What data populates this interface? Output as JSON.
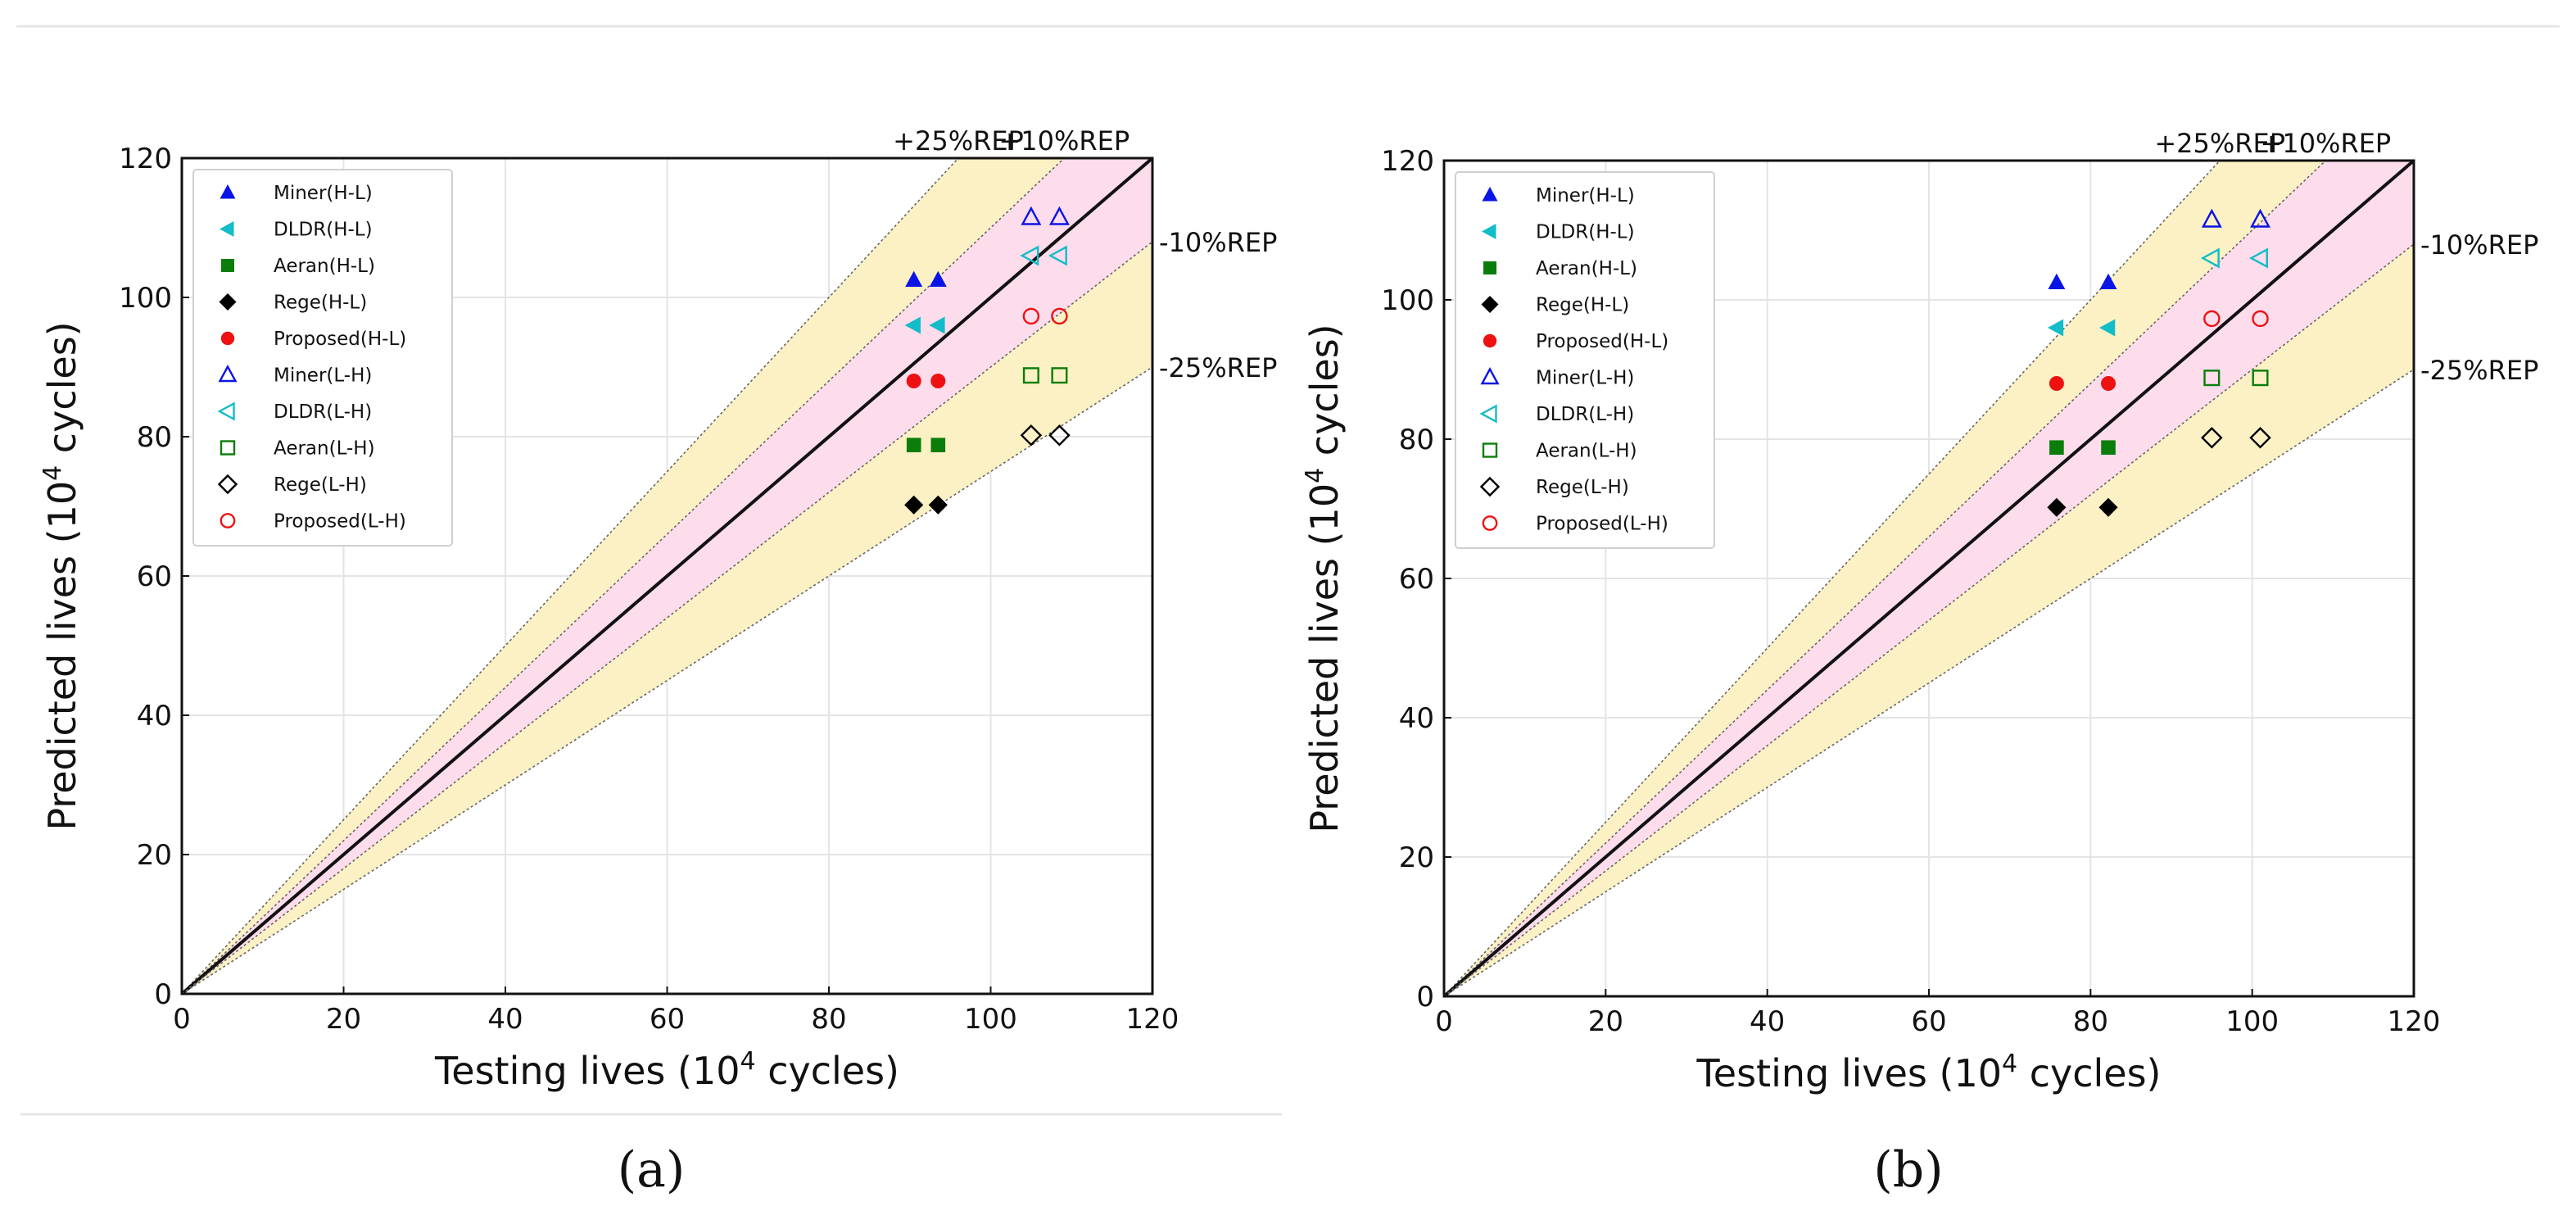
{
  "figure": {
    "panel_labels": [
      "(a)",
      "(b)"
    ]
  },
  "chart_data": [
    {
      "type": "scatter",
      "panel": "(a)",
      "xlabel": "Testing lives (10^4 cycles)",
      "ylabel": "Predicted lives (10^4 cycles)",
      "xlim": [
        0,
        120
      ],
      "ylim": [
        0,
        120
      ],
      "xticks": [
        0,
        20,
        40,
        60,
        80,
        100,
        120
      ],
      "yticks": [
        0,
        20,
        40,
        60,
        80,
        100,
        120
      ],
      "grid": true,
      "legend_position": "upper-left",
      "reference_lines": [
        {
          "label": "+25%REP",
          "slope": 1.25
        },
        {
          "label": "+10%REP",
          "slope": 1.1
        },
        {
          "label": "",
          "slope": 1.0
        },
        {
          "label": "-10%REP",
          "slope": 0.9
        },
        {
          "label": "-25%REP",
          "slope": 0.75
        }
      ],
      "band_colors": {
        "inner": "#fddcec",
        "outer": "#fbf1c4"
      },
      "series": [
        {
          "name": "Miner(H-L)",
          "marker": "triangle-up",
          "color": "#0a14e6",
          "filled": true,
          "x": [
            90.5,
            93.5
          ],
          "y": [
            102.5,
            102.5
          ]
        },
        {
          "name": "DLDR(H-L)",
          "marker": "triangle-left",
          "color": "#12bcc8",
          "filled": true,
          "x": [
            90.5,
            93.5
          ],
          "y": [
            96,
            96
          ]
        },
        {
          "name": "Aeran(H-L)",
          "marker": "square",
          "color": "#0a7d0a",
          "filled": true,
          "x": [
            90.5,
            93.5
          ],
          "y": [
            78.8,
            78.8
          ]
        },
        {
          "name": "Rege(H-L)",
          "marker": "diamond",
          "color": "#000000",
          "filled": true,
          "x": [
            90.5,
            93.5
          ],
          "y": [
            70.2,
            70.2
          ]
        },
        {
          "name": "Proposed(H-L)",
          "marker": "circle",
          "color": "#ee1111",
          "filled": true,
          "x": [
            90.5,
            93.5
          ],
          "y": [
            88,
            88
          ]
        },
        {
          "name": "Miner(L-H)",
          "marker": "triangle-up",
          "color": "#0a14e6",
          "filled": false,
          "x": [
            105,
            108.5
          ],
          "y": [
            111.5,
            111.5
          ]
        },
        {
          "name": "DLDR(L-H)",
          "marker": "triangle-left",
          "color": "#12bcc8",
          "filled": false,
          "x": [
            105,
            108.5
          ],
          "y": [
            106,
            106
          ]
        },
        {
          "name": "Aeran(L-H)",
          "marker": "square",
          "color": "#0a7d0a",
          "filled": false,
          "x": [
            105,
            108.5
          ],
          "y": [
            88.8,
            88.8
          ]
        },
        {
          "name": "Rege(L-H)",
          "marker": "diamond",
          "color": "#000000",
          "filled": false,
          "x": [
            105,
            108.5
          ],
          "y": [
            80.2,
            80.2
          ]
        },
        {
          "name": "Proposed(L-H)",
          "marker": "circle",
          "color": "#ee1111",
          "filled": false,
          "x": [
            105,
            108.5
          ],
          "y": [
            97.3,
            97.3
          ]
        }
      ]
    },
    {
      "type": "scatter",
      "panel": "(b)",
      "xlabel": "Testing lives (10^4 cycles)",
      "ylabel": "Predicted lives (10^4 cycles)",
      "xlim": [
        0,
        120
      ],
      "ylim": [
        0,
        120
      ],
      "xticks": [
        0,
        20,
        40,
        60,
        80,
        100,
        120
      ],
      "yticks": [
        0,
        20,
        40,
        60,
        80,
        100,
        120
      ],
      "grid": true,
      "legend_position": "upper-left",
      "reference_lines": [
        {
          "label": "+25%REP",
          "slope": 1.25
        },
        {
          "label": "+10%REP",
          "slope": 1.1
        },
        {
          "label": "",
          "slope": 1.0
        },
        {
          "label": "-10%REP",
          "slope": 0.9
        },
        {
          "label": "-25%REP",
          "slope": 0.75
        }
      ],
      "band_colors": {
        "inner": "#fddcec",
        "outer": "#fbf1c4"
      },
      "series": [
        {
          "name": "Miner(H-L)",
          "marker": "triangle-up",
          "color": "#0a14e6",
          "filled": true,
          "x": [
            75.8,
            82.2
          ],
          "y": [
            102.5,
            102.5
          ]
        },
        {
          "name": "DLDR(H-L)",
          "marker": "triangle-left",
          "color": "#12bcc8",
          "filled": true,
          "x": [
            75.8,
            82.2
          ],
          "y": [
            96,
            96
          ]
        },
        {
          "name": "Aeran(H-L)",
          "marker": "square",
          "color": "#0a7d0a",
          "filled": true,
          "x": [
            75.8,
            82.2
          ],
          "y": [
            78.8,
            78.8
          ]
        },
        {
          "name": "Rege(H-L)",
          "marker": "diamond",
          "color": "#000000",
          "filled": true,
          "x": [
            75.8,
            82.2
          ],
          "y": [
            70.2,
            70.2
          ]
        },
        {
          "name": "Proposed(H-L)",
          "marker": "circle",
          "color": "#ee1111",
          "filled": true,
          "x": [
            75.8,
            82.2
          ],
          "y": [
            88,
            88
          ]
        },
        {
          "name": "Miner(L-H)",
          "marker": "triangle-up",
          "color": "#0a14e6",
          "filled": false,
          "x": [
            95,
            101
          ],
          "y": [
            111.5,
            111.5
          ]
        },
        {
          "name": "DLDR(L-H)",
          "marker": "triangle-left",
          "color": "#12bcc8",
          "filled": false,
          "x": [
            95,
            101
          ],
          "y": [
            106,
            106
          ]
        },
        {
          "name": "Aeran(L-H)",
          "marker": "square",
          "color": "#0a7d0a",
          "filled": false,
          "x": [
            95,
            101
          ],
          "y": [
            88.8,
            88.8
          ]
        },
        {
          "name": "Rege(L-H)",
          "marker": "diamond",
          "color": "#000000",
          "filled": false,
          "x": [
            95,
            101
          ],
          "y": [
            80.2,
            80.2
          ]
        },
        {
          "name": "Proposed(L-H)",
          "marker": "circle",
          "color": "#ee1111",
          "filled": false,
          "x": [
            95,
            101
          ],
          "y": [
            97.3,
            97.3
          ]
        }
      ]
    }
  ]
}
